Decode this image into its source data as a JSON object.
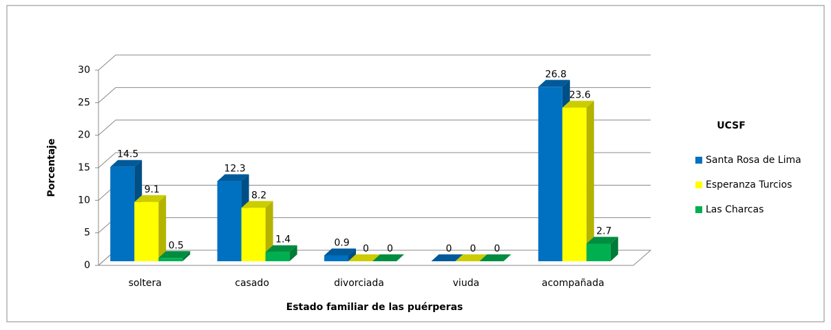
{
  "chart_data": {
    "type": "bar3d",
    "x_label": "Estado familiar de las puérperas",
    "y_label": "Porcentaje",
    "legend_title": "UCSF",
    "categories": [
      "soltera",
      "casado",
      "divorciada",
      "viuda",
      "acompañada"
    ],
    "series": [
      {
        "name": "Santa Rosa de Lima",
        "color": "#0070c0",
        "values": [
          14.5,
          12.3,
          0.9,
          0,
          26.8
        ]
      },
      {
        "name": "Esperanza Turcios",
        "color": "#ffff00",
        "values": [
          9.1,
          8.2,
          0,
          0,
          23.6
        ]
      },
      {
        "name": "Las Charcas",
        "color": "#00b050",
        "values": [
          0.5,
          1.4,
          0,
          0,
          2.7
        ]
      }
    ],
    "ylim": [
      0,
      30
    ],
    "yticks": [
      0,
      5,
      10,
      15,
      20,
      25,
      30
    ],
    "grid": true,
    "legend": "right"
  }
}
